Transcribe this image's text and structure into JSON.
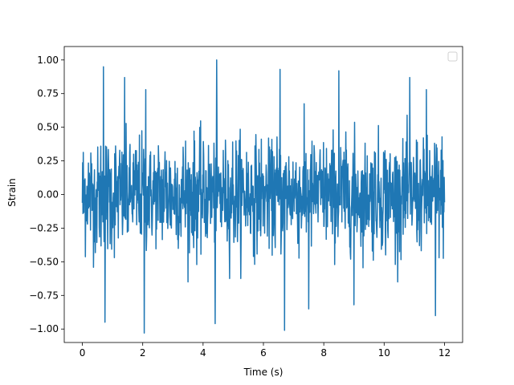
{
  "chart_data": {
    "type": "line",
    "title": "",
    "xlabel": "Time (s)",
    "ylabel": "Strain",
    "xlim": [
      -0.6,
      12.6
    ],
    "ylim": [
      -1.1,
      1.1
    ],
    "xticks": [
      0,
      2,
      4,
      6,
      8,
      10,
      12
    ],
    "xtick_labels": [
      "0",
      "2",
      "4",
      "6",
      "8",
      "10",
      "12"
    ],
    "yticks": [
      -1.0,
      -0.75,
      -0.5,
      -0.25,
      0.0,
      0.25,
      0.5,
      0.75,
      1.0
    ],
    "ytick_labels": [
      "−1.00",
      "−0.75",
      "−0.50",
      "−0.25",
      "0.00",
      "0.25",
      "0.50",
      "0.75",
      "1.00"
    ],
    "grid": false,
    "legend": {
      "placement": "upper-right",
      "entries": []
    },
    "series": [
      {
        "color": "#1f77b4",
        "x_range": [
          0,
          12
        ],
        "sample_rate_hz": 100,
        "y_max": 1.0,
        "y_min": -1.03,
        "typical_band": [
          -0.5,
          0.55
        ],
        "peaks": [
          {
            "x": 0.7,
            "y": 0.95
          },
          {
            "x": 1.4,
            "y": 0.87
          },
          {
            "x": 2.1,
            "y": 0.78
          },
          {
            "x": 4.45,
            "y": 1.0
          },
          {
            "x": 6.55,
            "y": 0.93
          },
          {
            "x": 8.5,
            "y": 0.92
          },
          {
            "x": 10.85,
            "y": 0.87
          },
          {
            "x": 11.4,
            "y": 0.78
          },
          {
            "x": 0.75,
            "y": -0.95
          },
          {
            "x": 2.05,
            "y": -1.03
          },
          {
            "x": 4.4,
            "y": -0.96
          },
          {
            "x": 6.7,
            "y": -1.01
          },
          {
            "x": 7.5,
            "y": -0.85
          },
          {
            "x": 9.0,
            "y": -0.82
          },
          {
            "x": 11.7,
            "y": -0.9
          }
        ]
      }
    ]
  }
}
